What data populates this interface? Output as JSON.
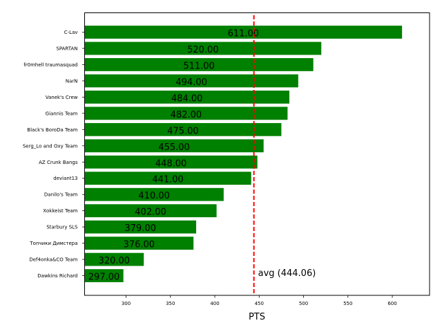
{
  "chart_data": {
    "type": "bar",
    "orientation": "horizontal",
    "title": "",
    "xlabel": "PTS",
    "ylabel": "",
    "xlim": [
      253.3,
      642.0
    ],
    "xticks": [
      300,
      350,
      400,
      450,
      500,
      550,
      600
    ],
    "grid": false,
    "legend": null,
    "bar_color": "#008000",
    "categories": [
      "C-Lav",
      "SPARTAN",
      "fr0mhell traumasquad",
      "NarN",
      "Vanek's Crew",
      "Giannis Team",
      "Black's BoroDa Team",
      "Serg_Lo and Oxy Team",
      "AZ Crunk Bangs",
      "deviant13",
      "Danilo's Team",
      "Xokkeist Team",
      "Starbury SLS",
      "Топчики Димстера",
      "Def4onka&CO Team",
      "Dawkins Richard"
    ],
    "values": [
      611,
      520,
      511,
      494,
      484,
      482,
      475,
      455,
      448,
      441,
      410,
      402,
      379,
      376,
      320,
      297
    ],
    "value_labels": [
      "611.00",
      "520.00",
      "511.00",
      "494.00",
      "484.00",
      "482.00",
      "475.00",
      "455.00",
      "448.00",
      "441.00",
      "410.00",
      "402.00",
      "379.00",
      "376.00",
      "320.00",
      "297.00"
    ],
    "reference_line": {
      "value": 444.06,
      "style": "dashed",
      "color": "#ff0000",
      "label": "avg (444.06)"
    }
  }
}
